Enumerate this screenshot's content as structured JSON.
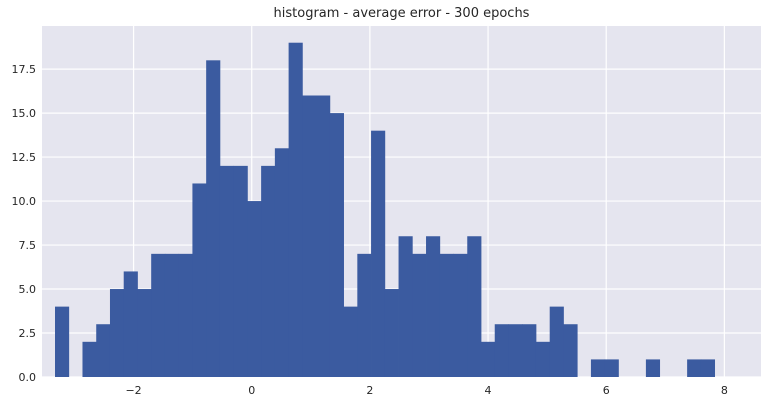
{
  "chart_data": {
    "type": "bar",
    "title": "histogram - average error - 300 epochs",
    "xlabel": "",
    "ylabel": "",
    "xlim": [
      -3.55,
      8.62
    ],
    "ylim": [
      0,
      19.95
    ],
    "x_ticks": [
      -2,
      0,
      2,
      4,
      6,
      8
    ],
    "x_tick_labels": [
      "−2",
      "0",
      "2",
      "4",
      "6",
      "8"
    ],
    "y_ticks": [
      0,
      2.5,
      5,
      7.5,
      10,
      12.5,
      15,
      17.5
    ],
    "y_tick_labels": [
      "0.0",
      "2.5",
      "5.0",
      "7.5",
      "10.0",
      "12.5",
      "15.0",
      "17.5"
    ],
    "grid": true,
    "bin_start": -3.33,
    "bin_width": 0.2326,
    "counts": [
      4,
      0,
      2,
      3,
      5,
      6,
      5,
      7,
      7,
      7,
      11,
      18,
      12,
      12,
      10,
      12,
      13,
      19,
      16,
      16,
      15,
      4,
      7,
      14,
      5,
      8,
      7,
      8,
      7,
      7,
      8,
      2,
      3,
      3,
      3,
      2,
      4,
      3,
      0,
      1,
      1,
      0,
      0,
      1,
      0,
      0,
      1,
      1
    ],
    "colors": {
      "bar": "#3b5ba0",
      "background": "#e5e5ef",
      "grid": "#ffffff"
    }
  }
}
